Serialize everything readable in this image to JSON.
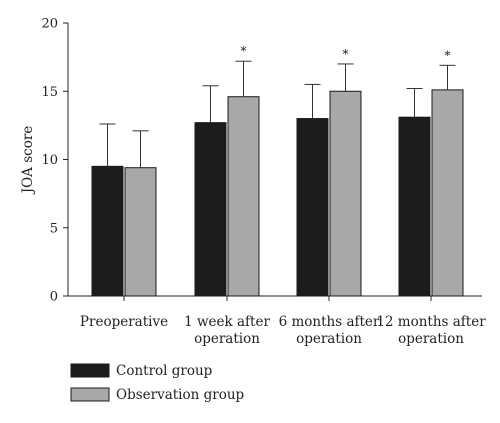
{
  "chart_data": {
    "type": "bar",
    "title": "",
    "xlabel": "",
    "ylabel": "JOA score",
    "ylim": [
      0,
      20
    ],
    "yticks": [
      0,
      5,
      10,
      15,
      20
    ],
    "grid": false,
    "legend_position": "bottom-left",
    "categories": [
      [
        "Preoperative"
      ],
      [
        "1 week after",
        "operation"
      ],
      [
        "6 months after",
        "operation"
      ],
      [
        "12 months after",
        "operation"
      ]
    ],
    "series": [
      {
        "name": "Control group",
        "color": "#1c1c1c",
        "values": [
          9.5,
          12.7,
          13.0,
          13.1
        ],
        "error": [
          3.1,
          2.7,
          2.5,
          2.1
        ]
      },
      {
        "name": "Observation group",
        "color": "#a8a8a8",
        "values": [
          9.4,
          14.6,
          15.0,
          15.1
        ],
        "error": [
          2.7,
          2.6,
          2.0,
          1.8
        ]
      }
    ],
    "annotations": [
      {
        "category_index": 1,
        "series_index": 1,
        "text": "*"
      },
      {
        "category_index": 2,
        "series_index": 1,
        "text": "*"
      },
      {
        "category_index": 3,
        "series_index": 1,
        "text": "*"
      }
    ]
  }
}
